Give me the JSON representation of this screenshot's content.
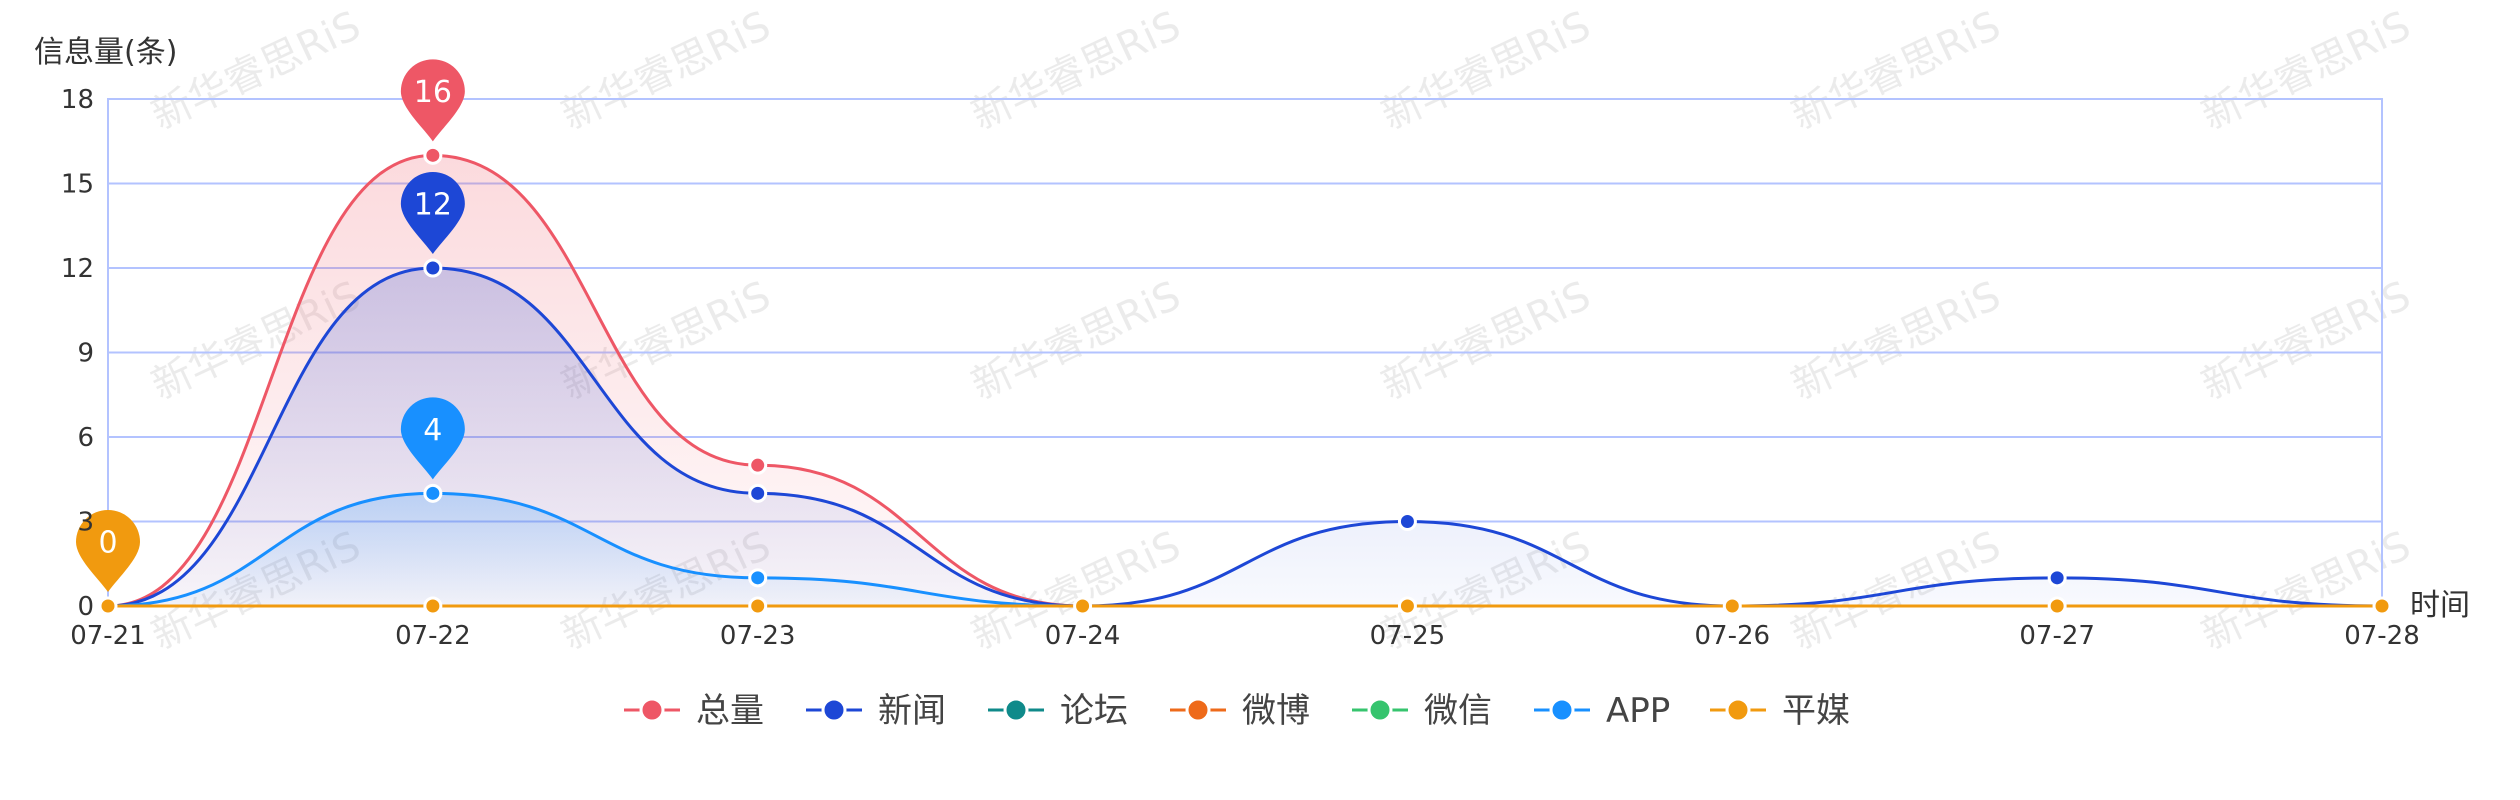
{
  "chart_data": {
    "type": "line",
    "title": "",
    "xlabel": "时间",
    "ylabel": "信息量(条)",
    "categories": [
      "07-21",
      "07-22",
      "07-23",
      "07-24",
      "07-25",
      "07-26",
      "07-27",
      "07-28"
    ],
    "ylim": [
      0,
      18
    ],
    "yticks": [
      0,
      3,
      6,
      9,
      12,
      15,
      18
    ],
    "grid": true,
    "legend_position": "bottom-center",
    "series": [
      {
        "name": "总量",
        "color": "#ee5766",
        "values": [
          0,
          16,
          5,
          0,
          0,
          0,
          0,
          0
        ],
        "area": true,
        "pin_at": "07-22"
      },
      {
        "name": "新闻",
        "color": "#1d47d6",
        "values": [
          0,
          12,
          4,
          0,
          3,
          0,
          1,
          0
        ],
        "area": true,
        "pin_at": "07-22"
      },
      {
        "name": "论坛",
        "color": "#0f8a8a",
        "values": [
          0,
          0,
          0,
          0,
          0,
          0,
          0,
          0
        ],
        "area": false
      },
      {
        "name": "微博",
        "color": "#ee6a1a",
        "values": [
          0,
          0,
          0,
          0,
          0,
          0,
          0,
          0
        ],
        "area": false
      },
      {
        "name": "微信",
        "color": "#36c46e",
        "values": [
          0,
          0,
          0,
          0,
          0,
          0,
          0,
          0
        ],
        "area": false
      },
      {
        "name": "APP",
        "color": "#1890ff",
        "values": [
          0,
          4,
          1,
          0,
          0,
          0,
          0,
          0
        ],
        "area": true,
        "pin_at": "07-22"
      },
      {
        "name": "平媒",
        "color": "#f19a0f",
        "values": [
          0,
          0,
          0,
          0,
          0,
          0,
          0,
          0
        ],
        "area": false,
        "pin_at": "07-21"
      }
    ],
    "watermark": "新华睿思RiS"
  }
}
